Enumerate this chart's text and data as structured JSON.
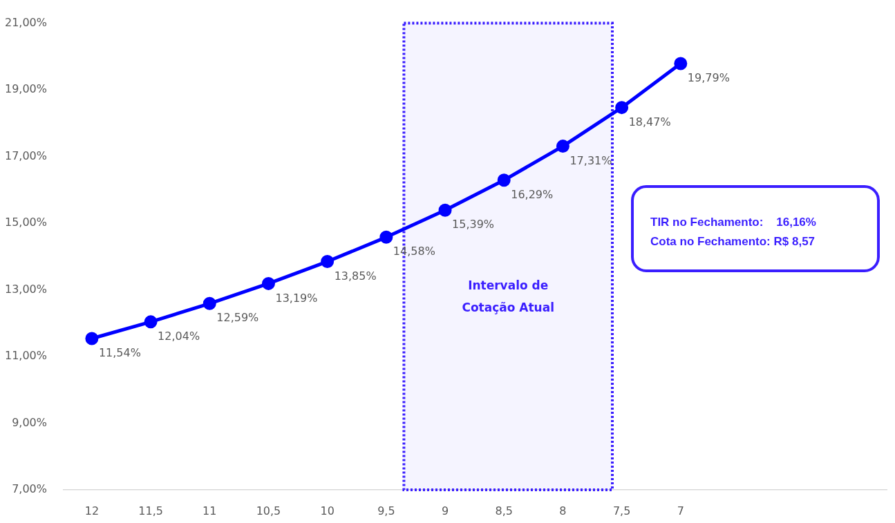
{
  "chart_data": {
    "type": "line",
    "x": [
      12,
      11.5,
      11,
      10.5,
      10,
      9.5,
      9,
      8.5,
      8,
      7.5,
      7
    ],
    "xlim": [
      12.24,
      5.25
    ],
    "xticks": [
      {
        "value": 12,
        "label": "12"
      },
      {
        "value": 11.5,
        "label": "11,5"
      },
      {
        "value": 11,
        "label": "11"
      },
      {
        "value": 10.5,
        "label": "10,5"
      },
      {
        "value": 10,
        "label": "10"
      },
      {
        "value": 9.5,
        "label": "9,5"
      },
      {
        "value": 9,
        "label": "9"
      },
      {
        "value": 8.5,
        "label": "8,5"
      },
      {
        "value": 8,
        "label": "8"
      },
      {
        "value": 7.5,
        "label": "7,5"
      },
      {
        "value": 7,
        "label": "7"
      }
    ],
    "ylim": [
      7,
      21
    ],
    "yticks": [
      {
        "value": 7,
        "label": "7,00%"
      },
      {
        "value": 9,
        "label": "9,00%"
      },
      {
        "value": 11,
        "label": "11,00%"
      },
      {
        "value": 13,
        "label": "13,00%"
      },
      {
        "value": 15,
        "label": "15,00%"
      },
      {
        "value": 17,
        "label": "17,00%"
      },
      {
        "value": 19,
        "label": "19,00%"
      },
      {
        "value": 21,
        "label": "21,00%"
      }
    ],
    "series": [
      {
        "color": "#0000ff",
        "values": [
          11.54,
          12.04,
          12.59,
          13.19,
          13.85,
          14.58,
          15.39,
          16.29,
          17.31,
          18.47,
          19.79
        ],
        "value_labels": [
          "11,54%",
          "12,04%",
          "12,59%",
          "13,19%",
          "13,85%",
          "14,58%",
          "15,39%",
          "16,29%",
          "17,31%",
          "18,47%",
          "19,79%"
        ]
      }
    ],
    "marker": "circle",
    "grid": false,
    "legend": false,
    "bands": [
      {
        "axis": "x",
        "from": 9.35,
        "to": 7.58,
        "label": "Intervalo de Cotação Atual",
        "color": "#3a1eff"
      }
    ],
    "annotations": [
      "TIR no Fechamento:    16,16%",
      "Cota no Fechamento: R$ 8,57"
    ]
  }
}
